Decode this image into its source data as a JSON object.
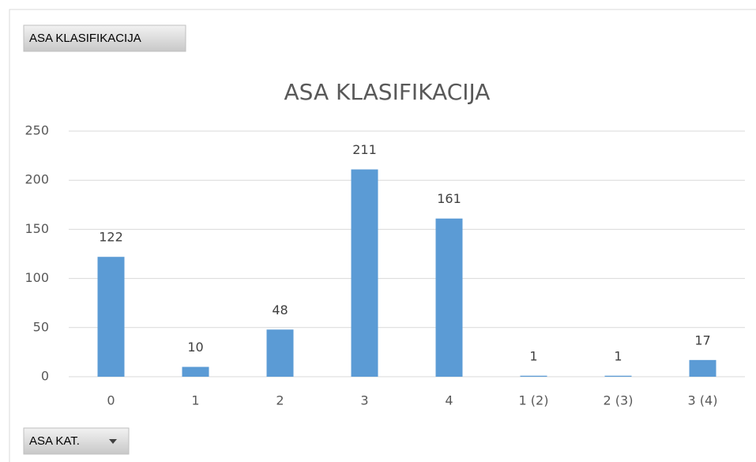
{
  "chart_data": {
    "type": "bar",
    "title": "ASA KLASIFIKACIJA",
    "value_field_button": "ASA KLASIFIKACIJA",
    "axis_field_button": "ASA KAT.",
    "categories": [
      "0",
      "1",
      "2",
      "3",
      "4",
      "1 (2)",
      "2 (3)",
      "3 (4)"
    ],
    "values": [
      122,
      10,
      48,
      211,
      161,
      1,
      1,
      17
    ],
    "color": "#5b9bd5",
    "ylim": [
      0,
      250
    ],
    "yticks": [
      0,
      50,
      100,
      150,
      200,
      250
    ],
    "grid": true
  }
}
